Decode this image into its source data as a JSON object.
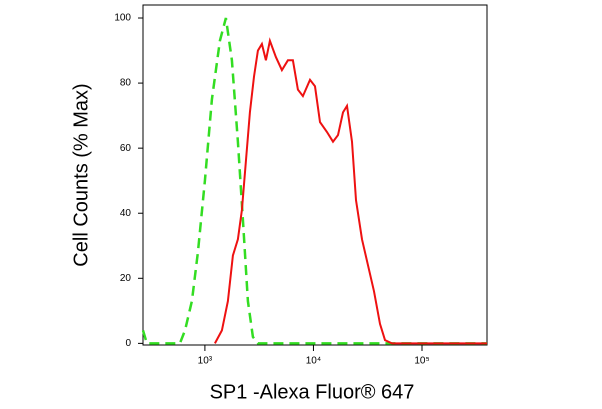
{
  "chart_data": {
    "type": "line",
    "x_label": "SP1 -Alexa Fluor® 647",
    "y_label": "Cell Counts (% Max)",
    "x_log": true,
    "xlim": [
      269,
      397000
    ],
    "ylim": [
      -0.5,
      104
    ],
    "xticks": [
      {
        "value": 1000,
        "label": "10³"
      },
      {
        "value": 10000,
        "label": "10⁴"
      },
      {
        "value": 100000,
        "label": "10⁵"
      }
    ],
    "yticks": [
      0,
      20,
      40,
      60,
      80,
      100
    ],
    "series": [
      {
        "color": "#33dd22",
        "dashed": true,
        "x": [
          269,
          292,
          385,
          589,
          655,
          759,
          862,
          1000,
          1160,
          1375,
          1561,
          1774,
          2014,
          2239,
          2489,
          2769,
          3078,
          397000
        ],
        "values": [
          4,
          0,
          0,
          0,
          4,
          13,
          28,
          50,
          75,
          93,
          100,
          87,
          62,
          38,
          13,
          2,
          0,
          0
        ]
      },
      {
        "color": "#ee1111",
        "dashed": false,
        "x": [
          1236,
          1435,
          1629,
          1811,
          2014,
          2193,
          2387,
          2600,
          2831,
          3078,
          3350,
          3648,
          3972,
          4510,
          5125,
          5821,
          6471,
          7194,
          7998,
          9290,
          10330,
          11480,
          13310,
          15140,
          16830,
          18710,
          20370,
          22640,
          24660,
          27990,
          31780,
          36140,
          41020,
          45600,
          52960,
          397000
        ],
        "values": [
          0,
          4,
          13,
          27,
          32,
          41,
          56,
          71,
          82,
          90,
          92,
          87,
          93,
          88,
          84,
          87,
          87,
          78,
          76,
          81,
          79,
          68,
          65,
          62,
          64,
          71,
          73,
          62,
          44,
          32,
          24,
          16,
          6,
          1,
          0,
          0
        ]
      }
    ]
  }
}
